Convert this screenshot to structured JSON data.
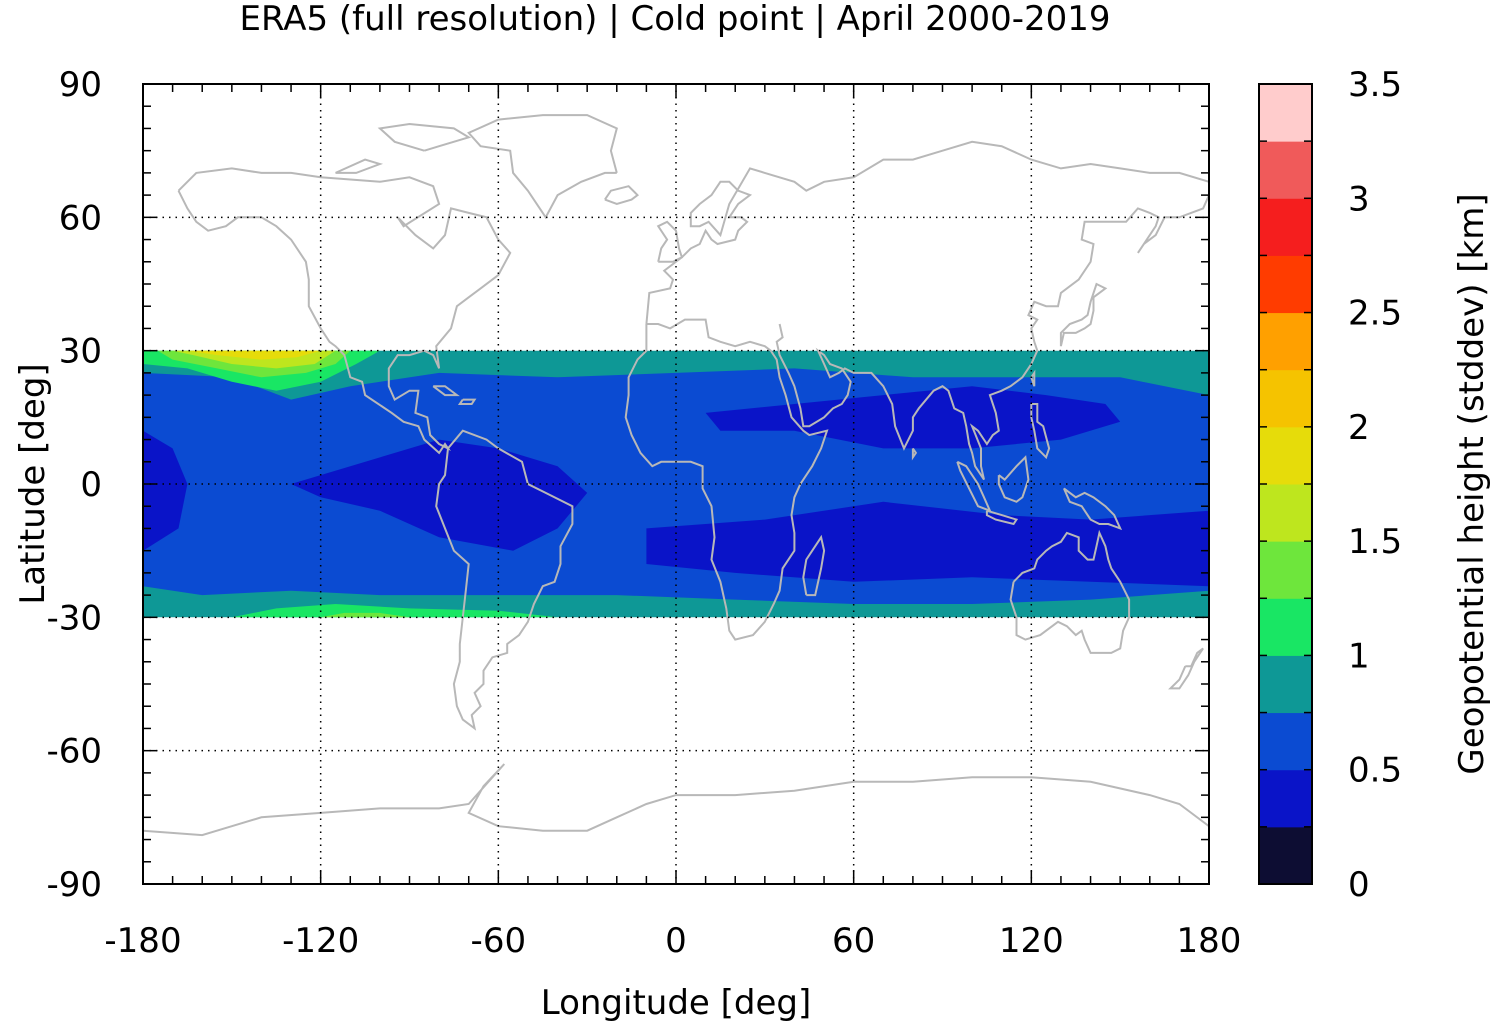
{
  "chart_data": {
    "type": "heatmap",
    "title": "ERA5 (full resolution) | Cold point | April 2000-2019",
    "xlabel": "Longitude [deg]",
    "ylabel": "Latitude [deg]",
    "colorbar_label": "Geopotential height (stddev) [km]",
    "xlim": [
      -180,
      180
    ],
    "ylim": [
      -90,
      90
    ],
    "data_lat_range": [
      -30,
      30
    ],
    "x_ticks": [
      "-180",
      "-120",
      "-60",
      "0",
      "60",
      "120",
      "180"
    ],
    "y_ticks": [
      "90",
      "60",
      "30",
      "0",
      "-30",
      "-60",
      "-90"
    ],
    "grid": true,
    "colorbar": {
      "range": [
        0,
        3.5
      ],
      "step": 0.25,
      "ticks": [
        "0",
        "0.5",
        "1",
        "1.5",
        "2",
        "2.5",
        "3",
        "3.5"
      ],
      "levels": [
        {
          "from": 0.0,
          "to": 0.25,
          "color": "#0d0d33"
        },
        {
          "from": 0.25,
          "to": 0.5,
          "color": "#0a14c8"
        },
        {
          "from": 0.5,
          "to": 0.75,
          "color": "#0b4bd2"
        },
        {
          "from": 0.75,
          "to": 1.0,
          "color": "#0e9896"
        },
        {
          "from": 1.0,
          "to": 1.25,
          "color": "#19e664"
        },
        {
          "from": 1.25,
          "to": 1.5,
          "color": "#6ee63c"
        },
        {
          "from": 1.5,
          "to": 1.75,
          "color": "#bee61e"
        },
        {
          "from": 1.75,
          "to": 2.0,
          "color": "#e6dc0a"
        },
        {
          "from": 2.0,
          "to": 2.25,
          "color": "#f5c300"
        },
        {
          "from": 2.25,
          "to": 2.5,
          "color": "#ffa000"
        },
        {
          "from": 2.5,
          "to": 2.75,
          "color": "#ff3c00"
        },
        {
          "from": 2.75,
          "to": 3.0,
          "color": "#f51e1e"
        },
        {
          "from": 3.0,
          "to": 3.25,
          "color": "#f05a5a"
        },
        {
          "from": 3.25,
          "to": 3.5,
          "color": "#ffcccc"
        }
      ]
    },
    "field_regions": [
      {
        "level": 0.75,
        "desc": "band edges near 30N and 30S",
        "polygon": [
          [
            -180,
            30
          ],
          [
            180,
            30
          ],
          [
            180,
            -30
          ],
          [
            -180,
            -30
          ]
        ]
      },
      {
        "level": 0.5,
        "desc": "tropical core",
        "polygon": [
          [
            -180,
            25
          ],
          [
            -150,
            24
          ],
          [
            -130,
            19
          ],
          [
            -110,
            22
          ],
          [
            -80,
            25
          ],
          [
            -40,
            24
          ],
          [
            0,
            25
          ],
          [
            40,
            26
          ],
          [
            80,
            24
          ],
          [
            120,
            24
          ],
          [
            150,
            24
          ],
          [
            180,
            20
          ],
          [
            180,
            -24
          ],
          [
            140,
            -26
          ],
          [
            100,
            -27
          ],
          [
            60,
            -27
          ],
          [
            20,
            -26
          ],
          [
            -20,
            -25
          ],
          [
            -60,
            -25
          ],
          [
            -100,
            -25
          ],
          [
            -130,
            -24
          ],
          [
            -160,
            -25
          ],
          [
            -180,
            -23
          ]
        ]
      },
      {
        "level": 1.0,
        "desc": "north-east Pacific maximum",
        "polygon": [
          [
            -180,
            30
          ],
          [
            -100,
            30
          ],
          [
            -108,
            27
          ],
          [
            -120,
            23
          ],
          [
            -135,
            21
          ],
          [
            -150,
            23
          ],
          [
            -165,
            26
          ],
          [
            -180,
            27
          ]
        ]
      },
      {
        "level": 1.25,
        "desc": "north-east Pacific maximum",
        "polygon": [
          [
            -175,
            30
          ],
          [
            -110,
            30
          ],
          [
            -115,
            27
          ],
          [
            -125,
            25
          ],
          [
            -140,
            24
          ],
          [
            -155,
            26
          ],
          [
            -170,
            28
          ]
        ]
      },
      {
        "level": 1.5,
        "desc": "north-east Pacific maximum",
        "polygon": [
          [
            -170,
            30
          ],
          [
            -115,
            30
          ],
          [
            -122,
            27
          ],
          [
            -135,
            26
          ],
          [
            -150,
            27
          ],
          [
            -163,
            29
          ]
        ]
      },
      {
        "level": 1.75,
        "desc": "north-east Pacific maximum",
        "polygon": [
          [
            -165,
            30
          ],
          [
            -120,
            30
          ],
          [
            -128,
            28.5
          ],
          [
            -140,
            28
          ],
          [
            -155,
            29
          ]
        ]
      },
      {
        "level": 1.0,
        "desc": "south-east Pacific edge",
        "polygon": [
          [
            -150,
            -30
          ],
          [
            -40,
            -30
          ],
          [
            -60,
            -28.5
          ],
          [
            -90,
            -28
          ],
          [
            -115,
            -27
          ],
          [
            -135,
            -28
          ]
        ]
      },
      {
        "level": 1.25,
        "desc": "south-east Pacific edge",
        "polygon": [
          [
            -120,
            -30
          ],
          [
            -90,
            -30
          ],
          [
            -100,
            -29
          ],
          [
            -112,
            -29
          ]
        ]
      },
      {
        "level": 0.25,
        "desc": "east Pacific / South America",
        "polygon": [
          [
            -130,
            0
          ],
          [
            -110,
            4
          ],
          [
            -80,
            10
          ],
          [
            -60,
            8
          ],
          [
            -40,
            4
          ],
          [
            -30,
            -2
          ],
          [
            -40,
            -10
          ],
          [
            -55,
            -15
          ],
          [
            -80,
            -12
          ],
          [
            -100,
            -6
          ],
          [
            -120,
            -3
          ]
        ]
      },
      {
        "level": 0.25,
        "desc": "south tropical belt",
        "polygon": [
          [
            -10,
            -10
          ],
          [
            30,
            -8
          ],
          [
            70,
            -4
          ],
          [
            110,
            -7
          ],
          [
            140,
            -8
          ],
          [
            180,
            -6
          ],
          [
            180,
            -23
          ],
          [
            140,
            -22
          ],
          [
            100,
            -21
          ],
          [
            60,
            -22
          ],
          [
            20,
            -20
          ],
          [
            -10,
            -18
          ]
        ]
      },
      {
        "level": 0.25,
        "desc": "north Indian Ocean belt",
        "polygon": [
          [
            10,
            16
          ],
          [
            40,
            18
          ],
          [
            70,
            20
          ],
          [
            100,
            22
          ],
          [
            125,
            20
          ],
          [
            145,
            18
          ],
          [
            150,
            14
          ],
          [
            130,
            10
          ],
          [
            100,
            8
          ],
          [
            70,
            8
          ],
          [
            40,
            12
          ],
          [
            15,
            12
          ]
        ]
      },
      {
        "level": 0.25,
        "desc": "central Pacific west of dateline",
        "polygon": [
          [
            -180,
            12
          ],
          [
            -170,
            8
          ],
          [
            -165,
            0
          ],
          [
            -168,
            -10
          ],
          [
            -180,
            -15
          ]
        ]
      }
    ]
  }
}
